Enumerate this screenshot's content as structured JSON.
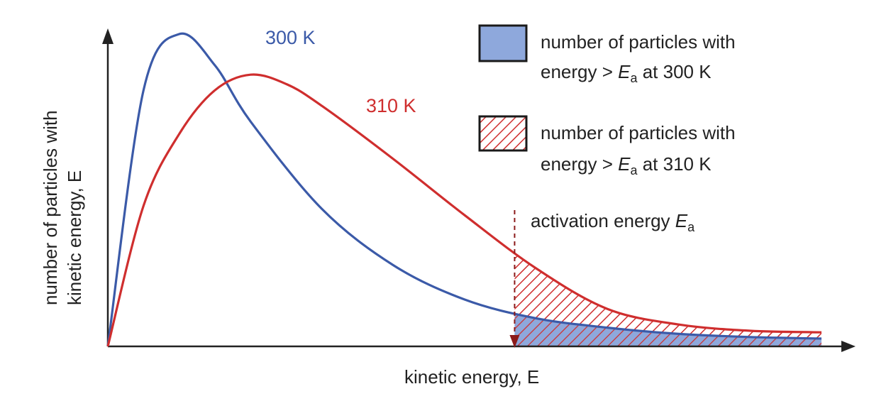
{
  "chart_data": {
    "type": "area",
    "xlabel": "kinetic energy, E",
    "ylabel_line1": "number of particles with",
    "ylabel_line2": "kinetic energy, E",
    "series": [
      {
        "name": "300 K",
        "color": "#3b5aa8",
        "x": [
          0,
          0.05,
          0.1,
          0.15,
          0.2,
          0.3,
          0.4,
          0.5,
          0.6,
          0.7,
          0.8,
          0.9,
          1.0
        ],
        "values": [
          0,
          0.82,
          1.0,
          0.9,
          0.72,
          0.44,
          0.26,
          0.15,
          0.09,
          0.06,
          0.04,
          0.03,
          0.025
        ]
      },
      {
        "name": "310 K",
        "color": "#cf2e2e",
        "x": [
          0,
          0.05,
          0.1,
          0.15,
          0.2,
          0.25,
          0.3,
          0.4,
          0.5,
          0.6,
          0.7,
          0.8,
          0.9,
          1.0
        ],
        "values": [
          0,
          0.45,
          0.68,
          0.82,
          0.87,
          0.84,
          0.77,
          0.6,
          0.42,
          0.25,
          0.12,
          0.07,
          0.05,
          0.045
        ]
      }
    ],
    "activation_energy": {
      "x": 0.57,
      "label_prefix": "activation energy ",
      "label_symbol": "E",
      "label_sub": "a",
      "color": "#8b1a1a"
    },
    "legend": {
      "position": "top-right",
      "entries": [
        {
          "swatch": "solid-blue",
          "fill": "#8ea8dc",
          "line1": "number of particles with",
          "line2_prefix": "energy > ",
          "line2_symbol": "E",
          "line2_sub": "a",
          "line2_suffix": " at 300 K"
        },
        {
          "swatch": "red-hatch",
          "fill": "#cf2e2e",
          "line1": "number of particles with",
          "line2_prefix": "energy > ",
          "line2_symbol": "E",
          "line2_sub": "a",
          "line2_suffix": " at 310 K"
        }
      ]
    },
    "xlim": [
      0,
      1
    ],
    "ylim": [
      0,
      1
    ],
    "grid": false,
    "ticks": false
  }
}
